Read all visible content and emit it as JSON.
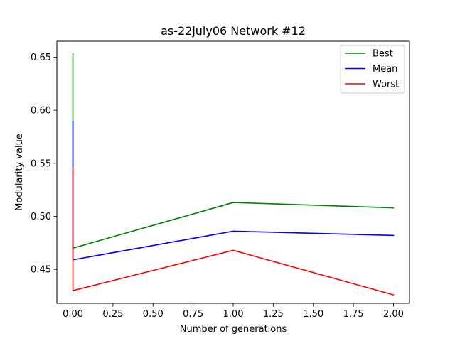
{
  "chart_data": {
    "type": "line",
    "title": "as-22july06 Network #12",
    "xlabel": "Number of generations",
    "ylabel": "Modularity value",
    "xlim": [
      -0.1,
      2.1
    ],
    "ylim": [
      0.418,
      0.665
    ],
    "x_ticks": [
      0.0,
      0.25,
      0.5,
      0.75,
      1.0,
      1.25,
      1.5,
      1.75,
      2.0
    ],
    "x_tick_labels": [
      "0.00",
      "0.25",
      "0.50",
      "0.75",
      "1.00",
      "1.25",
      "1.50",
      "1.75",
      "2.00"
    ],
    "y_ticks": [
      0.45,
      0.5,
      0.55,
      0.6,
      0.65
    ],
    "y_tick_labels": [
      "0.45",
      "0.50",
      "0.55",
      "0.60",
      "0.65"
    ],
    "grid": false,
    "legend_position": "top-right",
    "series": [
      {
        "name": "Best",
        "color": "#008000",
        "x": [
          0,
          0,
          1,
          2
        ],
        "y": [
          0.653,
          0.47,
          0.513,
          0.508
        ]
      },
      {
        "name": "Mean",
        "color": "#0000ff",
        "x": [
          0,
          0,
          1,
          2
        ],
        "y": [
          0.589,
          0.459,
          0.486,
          0.482
        ]
      },
      {
        "name": "Worst",
        "color": "#ff0000",
        "x": [
          0,
          0,
          1,
          2
        ],
        "y": [
          0.546,
          0.43,
          0.468,
          0.426
        ]
      }
    ]
  }
}
